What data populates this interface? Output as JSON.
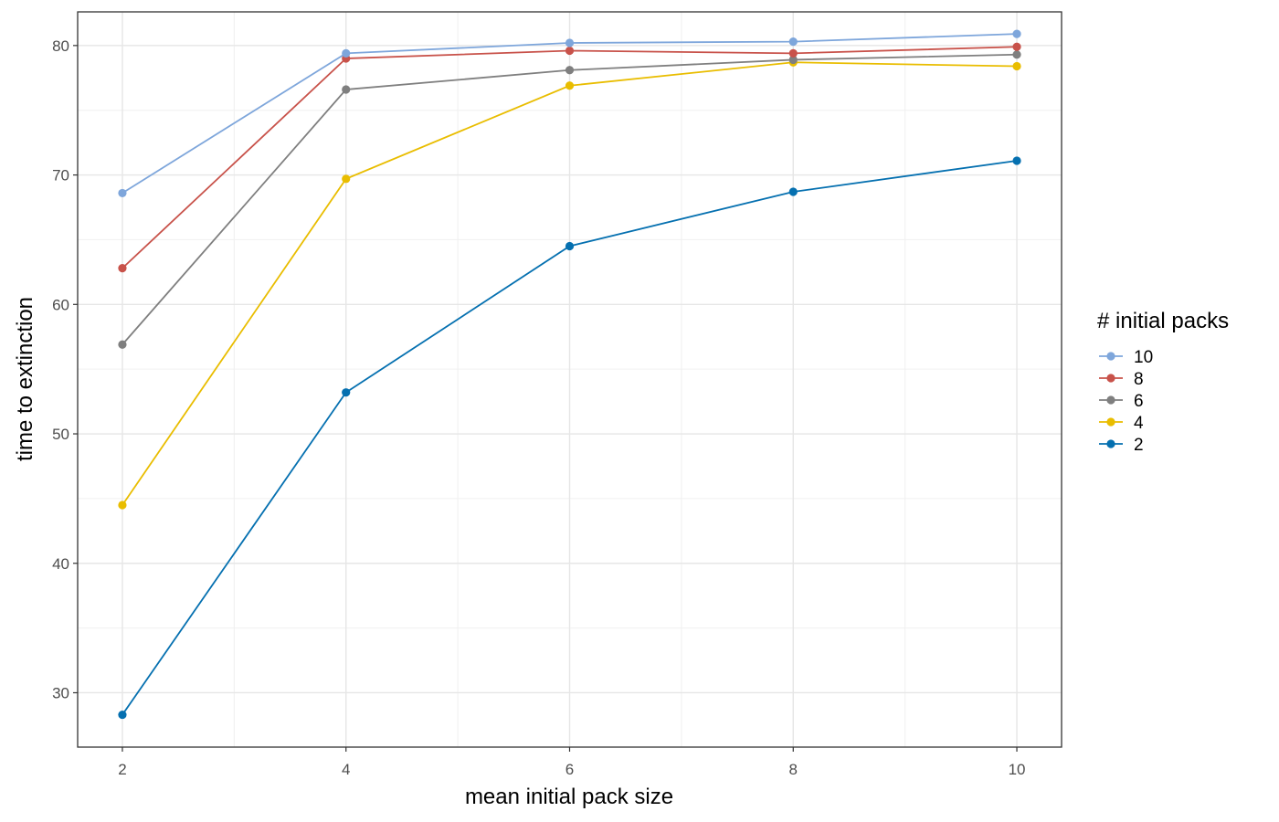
{
  "chart_data": {
    "type": "line",
    "title": "",
    "xlabel": "mean initial pack size",
    "ylabel": "time to extinction",
    "x": [
      2,
      4,
      6,
      8,
      10
    ],
    "xlim": [
      1.6,
      10.4
    ],
    "ylim": [
      25.8,
      82.6
    ],
    "x_ticks": [
      2,
      4,
      6,
      8,
      10
    ],
    "y_ticks": [
      30,
      40,
      50,
      60,
      70,
      80
    ],
    "grid": true,
    "legend": {
      "title": "# initial packs",
      "placement": "right"
    },
    "series": [
      {
        "name": "10",
        "color": "#7ea6db",
        "values": [
          68.6,
          79.4,
          80.2,
          80.3,
          80.9
        ]
      },
      {
        "name": "8",
        "color": "#c8524a",
        "values": [
          62.8,
          79.0,
          79.6,
          79.4,
          79.9
        ]
      },
      {
        "name": "6",
        "color": "#7f7f7f",
        "values": [
          56.9,
          76.6,
          78.1,
          78.9,
          79.3
        ]
      },
      {
        "name": "4",
        "color": "#e9bd00",
        "values": [
          44.5,
          69.7,
          76.9,
          78.7,
          78.4
        ]
      },
      {
        "name": "2",
        "color": "#0570b0",
        "values": [
          28.3,
          53.2,
          64.5,
          68.7,
          71.1
        ]
      }
    ]
  }
}
